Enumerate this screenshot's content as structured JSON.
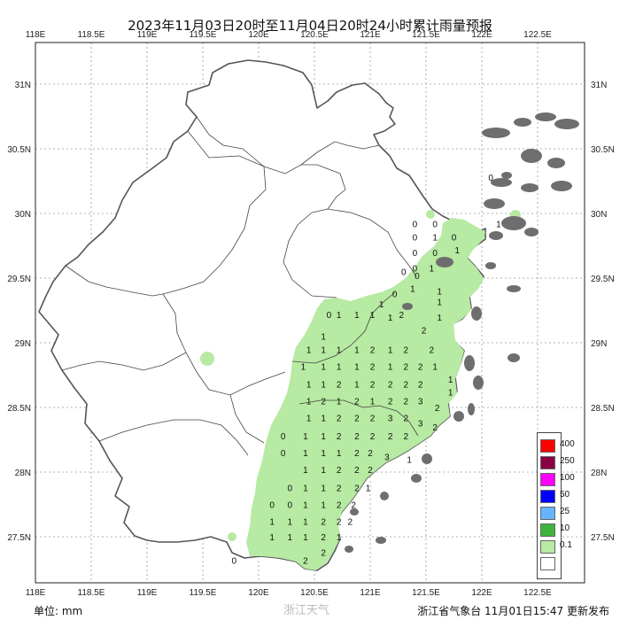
{
  "title": "2023年11月03日20时至11月04日20时24小时累计雨量预报",
  "axes": {
    "lon_labels": [
      "118E",
      "118.5E",
      "119E",
      "119.5E",
      "120E",
      "120.5E",
      "121E",
      "121.5E",
      "122E",
      "122.5E"
    ],
    "lat_labels": [
      "31N",
      "30.5N",
      "30N",
      "29.5N",
      "29N",
      "28.5N",
      "28N",
      "27.5N"
    ],
    "lon_range": [
      118.0,
      122.7
    ],
    "lat_range": [
      27.1,
      31.3
    ]
  },
  "legend": {
    "levels": [
      {
        "label": "400",
        "color": "#ff0000"
      },
      {
        "label": "250",
        "color": "#8b0045"
      },
      {
        "label": "100",
        "color": "#ff00ff"
      },
      {
        "label": "50",
        "color": "#0000ff"
      },
      {
        "label": "25",
        "color": "#66b3ff"
      },
      {
        "label": "10",
        "color": "#3db53d"
      },
      {
        "label": "0.1",
        "color": "#b7eaa2"
      },
      {
        "label": "",
        "color": "#ffffff"
      }
    ]
  },
  "station_values": [
    {
      "lon": 120.63,
      "lat": 29.22,
      "v": "0"
    },
    {
      "lon": 120.58,
      "lat": 29.05,
      "v": "1"
    },
    {
      "lon": 120.72,
      "lat": 29.22,
      "v": "1"
    },
    {
      "lon": 120.88,
      "lat": 29.22,
      "v": "1"
    },
    {
      "lon": 121.02,
      "lat": 29.22,
      "v": "1"
    },
    {
      "lon": 121.18,
      "lat": 29.2,
      "v": "1"
    },
    {
      "lon": 121.28,
      "lat": 29.22,
      "v": "2"
    },
    {
      "lon": 121.1,
      "lat": 29.3,
      "v": "1"
    },
    {
      "lon": 121.22,
      "lat": 29.38,
      "v": "0"
    },
    {
      "lon": 121.38,
      "lat": 29.42,
      "v": "1"
    },
    {
      "lon": 121.3,
      "lat": 29.55,
      "v": "0"
    },
    {
      "lon": 121.42,
      "lat": 29.52,
      "v": "0"
    },
    {
      "lon": 121.62,
      "lat": 29.4,
      "v": "1"
    },
    {
      "lon": 121.62,
      "lat": 29.32,
      "v": "1"
    },
    {
      "lon": 121.62,
      "lat": 29.2,
      "v": "1"
    },
    {
      "lon": 121.4,
      "lat": 29.92,
      "v": "0"
    },
    {
      "lon": 121.58,
      "lat": 29.92,
      "v": "0"
    },
    {
      "lon": 121.4,
      "lat": 29.82,
      "v": "0"
    },
    {
      "lon": 121.58,
      "lat": 29.82,
      "v": "1"
    },
    {
      "lon": 121.4,
      "lat": 29.7,
      "v": "0"
    },
    {
      "lon": 121.58,
      "lat": 29.7,
      "v": "0"
    },
    {
      "lon": 121.4,
      "lat": 29.58,
      "v": "0"
    },
    {
      "lon": 121.55,
      "lat": 29.58,
      "v": "1"
    },
    {
      "lon": 121.75,
      "lat": 29.82,
      "v": "0"
    },
    {
      "lon": 121.78,
      "lat": 29.72,
      "v": "1"
    },
    {
      "lon": 122.15,
      "lat": 29.92,
      "v": "1"
    },
    {
      "lon": 122.08,
      "lat": 30.28,
      "v": "0"
    },
    {
      "lon": 120.45,
      "lat": 28.95,
      "v": "1"
    },
    {
      "lon": 120.58,
      "lat": 28.95,
      "v": "1"
    },
    {
      "lon": 120.72,
      "lat": 28.95,
      "v": "1"
    },
    {
      "lon": 120.88,
      "lat": 28.95,
      "v": "1"
    },
    {
      "lon": 121.02,
      "lat": 28.95,
      "v": "2"
    },
    {
      "lon": 121.18,
      "lat": 28.95,
      "v": "1"
    },
    {
      "lon": 121.32,
      "lat": 28.95,
      "v": "2"
    },
    {
      "lon": 121.48,
      "lat": 29.1,
      "v": "2"
    },
    {
      "lon": 121.55,
      "lat": 28.95,
      "v": "2"
    },
    {
      "lon": 120.4,
      "lat": 28.82,
      "v": "1"
    },
    {
      "lon": 120.58,
      "lat": 28.82,
      "v": "1"
    },
    {
      "lon": 120.72,
      "lat": 28.82,
      "v": "1"
    },
    {
      "lon": 120.88,
      "lat": 28.82,
      "v": "1"
    },
    {
      "lon": 121.02,
      "lat": 28.82,
      "v": "2"
    },
    {
      "lon": 121.18,
      "lat": 28.82,
      "v": "1"
    },
    {
      "lon": 121.32,
      "lat": 28.82,
      "v": "2"
    },
    {
      "lon": 121.45,
      "lat": 28.82,
      "v": "2"
    },
    {
      "lon": 121.58,
      "lat": 28.82,
      "v": "1"
    },
    {
      "lon": 120.45,
      "lat": 28.68,
      "v": "1"
    },
    {
      "lon": 120.58,
      "lat": 28.68,
      "v": "1"
    },
    {
      "lon": 120.72,
      "lat": 28.68,
      "v": "2"
    },
    {
      "lon": 120.88,
      "lat": 28.68,
      "v": "1"
    },
    {
      "lon": 121.02,
      "lat": 28.68,
      "v": "2"
    },
    {
      "lon": 121.18,
      "lat": 28.68,
      "v": "2"
    },
    {
      "lon": 121.32,
      "lat": 28.68,
      "v": "2"
    },
    {
      "lon": 121.45,
      "lat": 28.68,
      "v": "2"
    },
    {
      "lon": 121.72,
      "lat": 28.72,
      "v": "1"
    },
    {
      "lon": 121.72,
      "lat": 28.62,
      "v": "1"
    },
    {
      "lon": 120.45,
      "lat": 28.55,
      "v": "1"
    },
    {
      "lon": 120.58,
      "lat": 28.55,
      "v": "2"
    },
    {
      "lon": 120.72,
      "lat": 28.55,
      "v": "1"
    },
    {
      "lon": 120.88,
      "lat": 28.55,
      "v": "2"
    },
    {
      "lon": 121.02,
      "lat": 28.55,
      "v": "1"
    },
    {
      "lon": 121.18,
      "lat": 28.55,
      "v": "2"
    },
    {
      "lon": 121.32,
      "lat": 28.55,
      "v": "2"
    },
    {
      "lon": 121.45,
      "lat": 28.55,
      "v": "3"
    },
    {
      "lon": 121.6,
      "lat": 28.5,
      "v": "2"
    },
    {
      "lon": 120.45,
      "lat": 28.42,
      "v": "1"
    },
    {
      "lon": 120.58,
      "lat": 28.42,
      "v": "1"
    },
    {
      "lon": 120.72,
      "lat": 28.42,
      "v": "2"
    },
    {
      "lon": 120.88,
      "lat": 28.42,
      "v": "2"
    },
    {
      "lon": 121.02,
      "lat": 28.42,
      "v": "2"
    },
    {
      "lon": 121.18,
      "lat": 28.42,
      "v": "3"
    },
    {
      "lon": 121.32,
      "lat": 28.42,
      "v": "2"
    },
    {
      "lon": 121.45,
      "lat": 28.38,
      "v": "3"
    },
    {
      "lon": 121.58,
      "lat": 28.35,
      "v": "2"
    },
    {
      "lon": 120.22,
      "lat": 28.28,
      "v": "0"
    },
    {
      "lon": 120.42,
      "lat": 28.28,
      "v": "1"
    },
    {
      "lon": 120.58,
      "lat": 28.28,
      "v": "1"
    },
    {
      "lon": 120.72,
      "lat": 28.28,
      "v": "2"
    },
    {
      "lon": 120.88,
      "lat": 28.28,
      "v": "2"
    },
    {
      "lon": 121.02,
      "lat": 28.28,
      "v": "2"
    },
    {
      "lon": 121.18,
      "lat": 28.28,
      "v": "2"
    },
    {
      "lon": 121.32,
      "lat": 28.28,
      "v": "2"
    },
    {
      "lon": 120.22,
      "lat": 28.15,
      "v": "0"
    },
    {
      "lon": 120.42,
      "lat": 28.15,
      "v": "1"
    },
    {
      "lon": 120.58,
      "lat": 28.15,
      "v": "1"
    },
    {
      "lon": 120.72,
      "lat": 28.15,
      "v": "1"
    },
    {
      "lon": 120.88,
      "lat": 28.15,
      "v": "2"
    },
    {
      "lon": 121.0,
      "lat": 28.15,
      "v": "2"
    },
    {
      "lon": 121.15,
      "lat": 28.12,
      "v": "3"
    },
    {
      "lon": 121.35,
      "lat": 28.1,
      "v": "1"
    },
    {
      "lon": 120.42,
      "lat": 28.02,
      "v": "1"
    },
    {
      "lon": 120.58,
      "lat": 28.02,
      "v": "1"
    },
    {
      "lon": 120.72,
      "lat": 28.02,
      "v": "2"
    },
    {
      "lon": 120.88,
      "lat": 28.02,
      "v": "2"
    },
    {
      "lon": 121.0,
      "lat": 28.02,
      "v": "2"
    },
    {
      "lon": 120.28,
      "lat": 27.88,
      "v": "0"
    },
    {
      "lon": 120.42,
      "lat": 27.88,
      "v": "1"
    },
    {
      "lon": 120.58,
      "lat": 27.88,
      "v": "1"
    },
    {
      "lon": 120.72,
      "lat": 27.88,
      "v": "2"
    },
    {
      "lon": 120.88,
      "lat": 27.88,
      "v": "2"
    },
    {
      "lon": 120.98,
      "lat": 27.88,
      "v": "1"
    },
    {
      "lon": 120.12,
      "lat": 27.75,
      "v": "0"
    },
    {
      "lon": 120.28,
      "lat": 27.75,
      "v": "0"
    },
    {
      "lon": 120.42,
      "lat": 27.75,
      "v": "1"
    },
    {
      "lon": 120.58,
      "lat": 27.75,
      "v": "1"
    },
    {
      "lon": 120.72,
      "lat": 27.75,
      "v": "2"
    },
    {
      "lon": 120.85,
      "lat": 27.75,
      "v": "2"
    },
    {
      "lon": 120.12,
      "lat": 27.62,
      "v": "1"
    },
    {
      "lon": 120.28,
      "lat": 27.62,
      "v": "1"
    },
    {
      "lon": 120.42,
      "lat": 27.62,
      "v": "1"
    },
    {
      "lon": 120.58,
      "lat": 27.62,
      "v": "2"
    },
    {
      "lon": 120.72,
      "lat": 27.62,
      "v": "2"
    },
    {
      "lon": 120.82,
      "lat": 27.62,
      "v": "2"
    },
    {
      "lon": 120.12,
      "lat": 27.5,
      "v": "1"
    },
    {
      "lon": 120.28,
      "lat": 27.5,
      "v": "1"
    },
    {
      "lon": 120.42,
      "lat": 27.5,
      "v": "1"
    },
    {
      "lon": 120.58,
      "lat": 27.5,
      "v": "2"
    },
    {
      "lon": 120.72,
      "lat": 27.5,
      "v": "1"
    },
    {
      "lon": 120.58,
      "lat": 27.38,
      "v": "2"
    },
    {
      "lon": 119.78,
      "lat": 27.32,
      "v": "0"
    },
    {
      "lon": 120.42,
      "lat": 27.32,
      "v": "2"
    }
  ],
  "footer": {
    "unit": "单位: mm",
    "watermark": "浙江天气",
    "source": "浙江省气象台 11月01日15:47 更新发布"
  }
}
